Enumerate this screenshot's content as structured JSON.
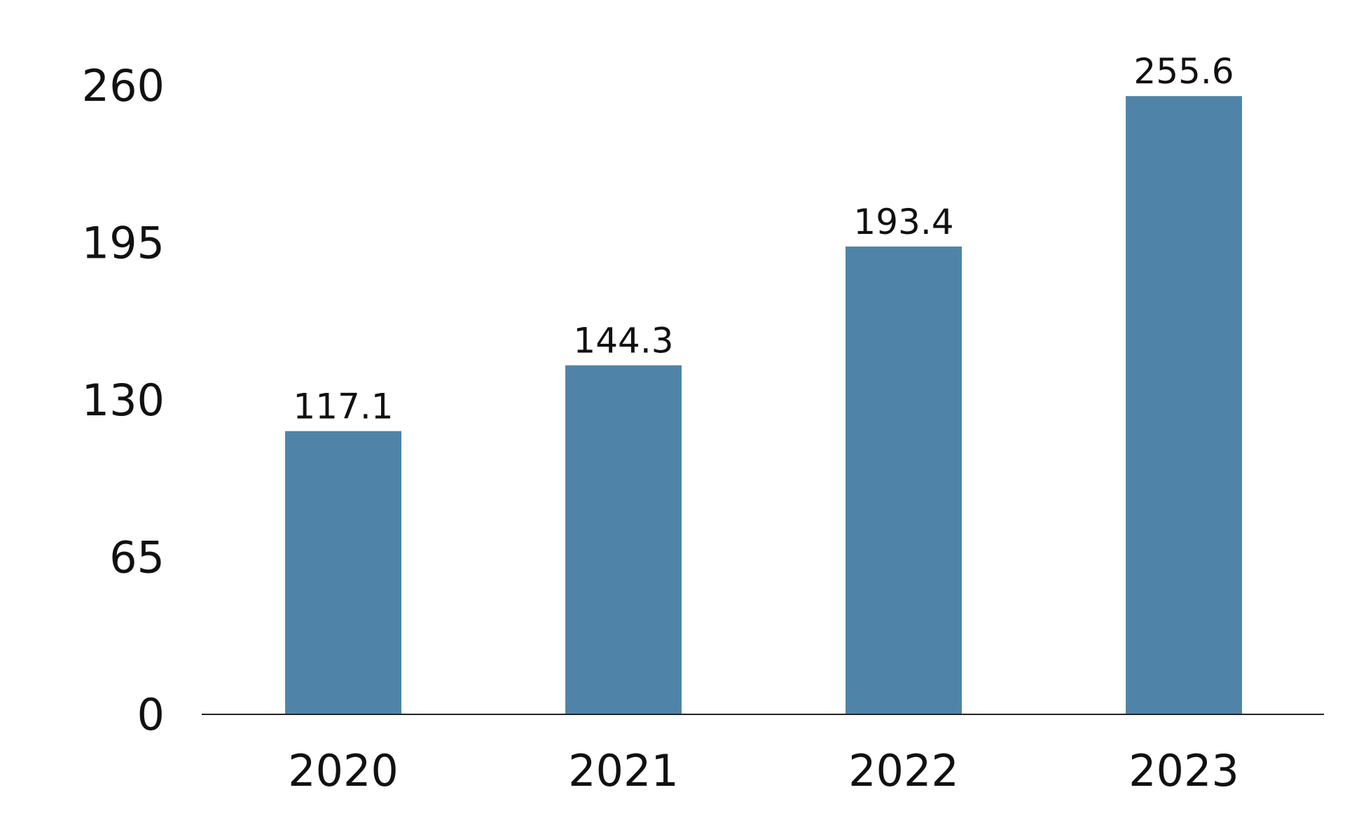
{
  "chart_data": {
    "type": "bar",
    "categories": [
      "2020",
      "2021",
      "2022",
      "2023"
    ],
    "values": [
      117.1,
      144.3,
      193.4,
      255.6
    ],
    "value_labels": [
      "117.1",
      "144.3",
      "193.4",
      "255.6"
    ],
    "y_ticks": [
      "0",
      "65",
      "130",
      "195",
      "260"
    ],
    "ylim": [
      0,
      260
    ],
    "grid": false,
    "title": "",
    "xlabel": "",
    "ylabel": "",
    "bar_color": "#4f84a8",
    "axis_color": "#222222"
  }
}
